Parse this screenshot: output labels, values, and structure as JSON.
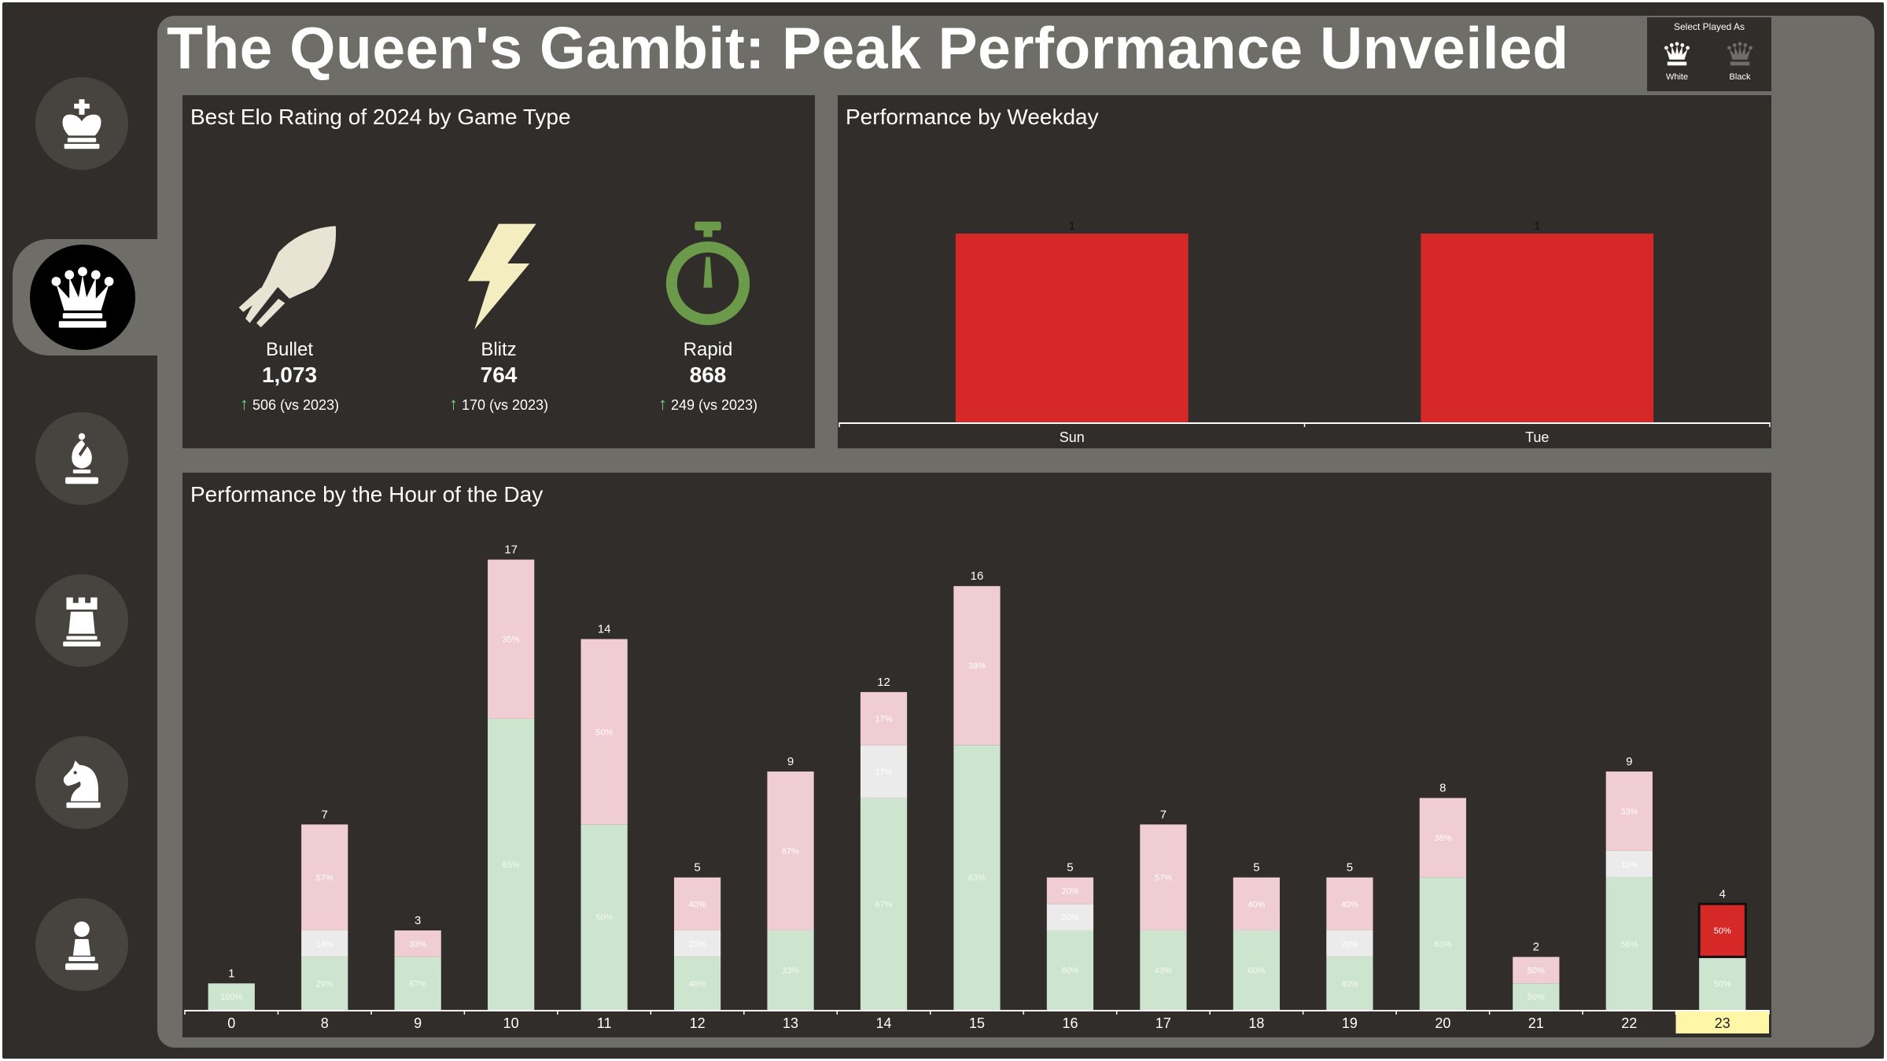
{
  "title": "The Queen's Gambit: Peak Performance Unveiled",
  "nav": {
    "items": [
      {
        "name": "king",
        "active": false
      },
      {
        "name": "queen",
        "active": true
      },
      {
        "name": "bishop",
        "active": false
      },
      {
        "name": "rook",
        "active": false
      },
      {
        "name": "knight",
        "active": false
      },
      {
        "name": "pawn",
        "active": false
      }
    ]
  },
  "played_as": {
    "title": "Select Played As",
    "options": [
      {
        "label": "White",
        "selected": true
      },
      {
        "label": "Black",
        "selected": false
      }
    ]
  },
  "elo_panel": {
    "title": "Best Elo Rating of 2024 by Game Type",
    "items": [
      {
        "name": "Bullet",
        "value": "1,073",
        "delta": "506 (vs 2023)",
        "icon": "rocket-icon",
        "color": "#e9e3d3"
      },
      {
        "name": "Blitz",
        "value": "764",
        "delta": "170 (vs 2023)",
        "icon": "lightning-icon",
        "color": "#f4edc0"
      },
      {
        "name": "Rapid",
        "value": "868",
        "delta": "249 (vs 2023)",
        "icon": "stopwatch-icon",
        "color": "#6a9a4a"
      }
    ]
  },
  "colors": {
    "win": "#cde4cf",
    "draw": "#ebebeb",
    "loss": "#efcdd2",
    "highlight": "#d72828",
    "selected_axis": "#fff6a8",
    "panel": "#302d2b",
    "canvas": "#6e6d68"
  },
  "chart_data": [
    {
      "type": "bar",
      "title": "Performance by Weekday",
      "categories": [
        "Sun",
        "Tue"
      ],
      "values": [
        1,
        1
      ],
      "data_labels": [
        "1",
        "1"
      ],
      "bar_color": "#d72828",
      "ylim": [
        0,
        1.15
      ],
      "grid": false
    },
    {
      "type": "bar",
      "stacked": true,
      "title": "Performance by the Hour of the Day",
      "categories": [
        "0",
        "8",
        "9",
        "10",
        "11",
        "12",
        "13",
        "14",
        "15",
        "16",
        "17",
        "18",
        "19",
        "20",
        "21",
        "22",
        "23"
      ],
      "totals": [
        1,
        7,
        3,
        17,
        14,
        5,
        9,
        12,
        16,
        5,
        7,
        5,
        5,
        8,
        2,
        9,
        4
      ],
      "series": [
        {
          "key": "win",
          "values": [
            1,
            2,
            2,
            11,
            7,
            2,
            3,
            8,
            10,
            3,
            3,
            3,
            2,
            5,
            1,
            5,
            2
          ],
          "labels": [
            "100%",
            "29%",
            "67%",
            "65%",
            "50%",
            "40%",
            "33%",
            "67%",
            "63%",
            "60%",
            "43%",
            "60%",
            "40%",
            "63%",
            "50%",
            "56%",
            "50%"
          ]
        },
        {
          "key": "draw",
          "values": [
            0,
            1,
            0,
            0,
            0,
            1,
            0,
            2,
            0,
            1,
            0,
            0,
            1,
            0,
            0,
            1,
            0
          ],
          "labels": [
            "",
            "14%",
            "",
            "",
            "",
            "20%",
            "",
            "17%",
            "",
            "20%",
            "",
            "",
            "20%",
            "",
            "",
            "11%",
            ""
          ]
        },
        {
          "key": "loss",
          "values": [
            0,
            4,
            1,
            6,
            7,
            2,
            6,
            2,
            6,
            1,
            4,
            2,
            2,
            3,
            1,
            3,
            2
          ],
          "labels": [
            "",
            "57%",
            "33%",
            "35%",
            "50%",
            "40%",
            "67%",
            "17%",
            "38%",
            "20%",
            "57%",
            "40%",
            "40%",
            "38%",
            "50%",
            "33%",
            "50%"
          ]
        }
      ],
      "selected_category": "23",
      "selected_segment": "loss",
      "ylim": [
        0,
        18.5
      ],
      "grid": false
    }
  ]
}
